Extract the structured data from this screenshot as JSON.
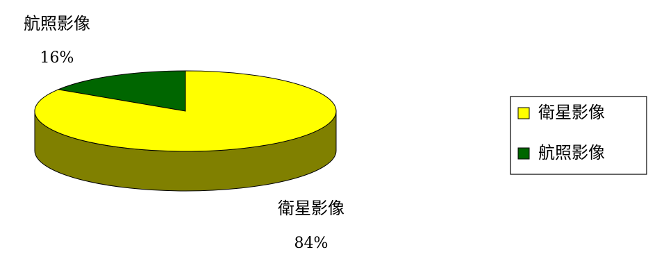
{
  "chart_data": {
    "type": "pie",
    "title": "",
    "labels": [
      "衛星影像",
      "航照影像"
    ],
    "values": [
      84,
      16
    ],
    "value_labels": [
      "84%",
      "16%"
    ],
    "colors": [
      "#FFFF00",
      "#006600"
    ],
    "side_colors": [
      "#808000",
      "#003300"
    ],
    "legend": {
      "placement": "right",
      "entries": [
        "衛星影像",
        "航照影像"
      ]
    }
  }
}
